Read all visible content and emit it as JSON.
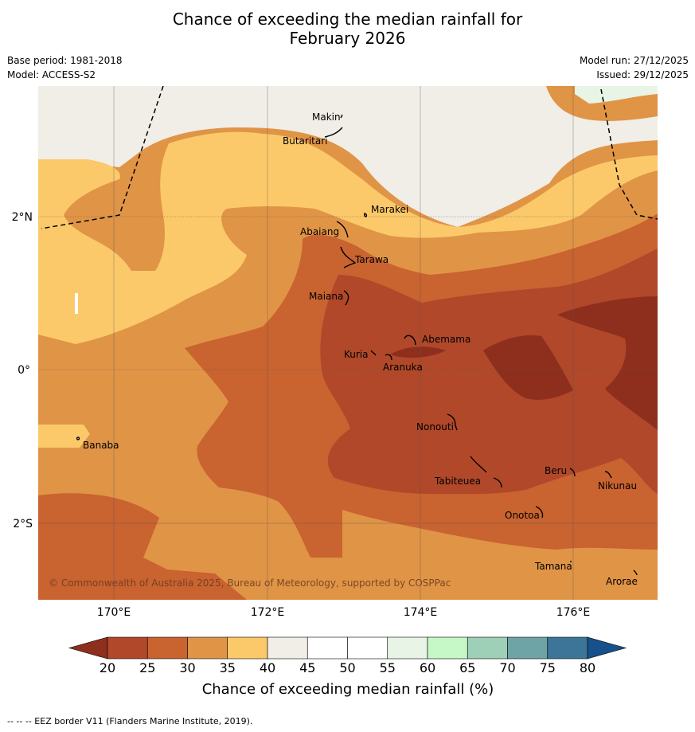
{
  "title_line1": "Chance of exceeding the median rainfall for",
  "title_line2": "February 2026",
  "info": {
    "base_period": "Base period: 1981-2018",
    "model": "Model: ACCESS-S2",
    "model_run": "Model run: 27/12/2025",
    "issued": "Issued: 29/12/2025"
  },
  "axes": {
    "lat_labels": [
      "2°N",
      "0°",
      "2°S"
    ],
    "lon_labels": [
      "170°E",
      "172°E",
      "174°E",
      "176°E"
    ]
  },
  "places": [
    "Makin",
    "Butaritari",
    "Marakei",
    "Abaiang",
    "Tarawa",
    "Maiana",
    "Abemama",
    "Kuria",
    "Aranuka",
    "Nonouti",
    "Banaba",
    "Tabiteuea",
    "Beru",
    "Nikunau",
    "Onotoa",
    "Tamana",
    "Arorae"
  ],
  "copyright": "© Commonwealth of Australia 2025, Bureau of Meteorology, supported by COSPPac",
  "legend": {
    "ticks": [
      "20",
      "25",
      "30",
      "35",
      "40",
      "45",
      "50",
      "55",
      "60",
      "65",
      "70",
      "75",
      "80"
    ],
    "colors": [
      "#8e2f1e",
      "#b1482a",
      "#c96330",
      "#e09446",
      "#fbc96a",
      "#f1ede7",
      "#ffffff",
      "#ffffff",
      "#e8f4e6",
      "#c6f7c6",
      "#9ecfb7",
      "#6ea4a5",
      "#3c7597",
      "#17508a"
    ],
    "label": "Chance of exceeding median rainfall (%)"
  },
  "footnote": "-- -- -- EEZ border V11 (Flanders Marine Institute, 2019)."
}
